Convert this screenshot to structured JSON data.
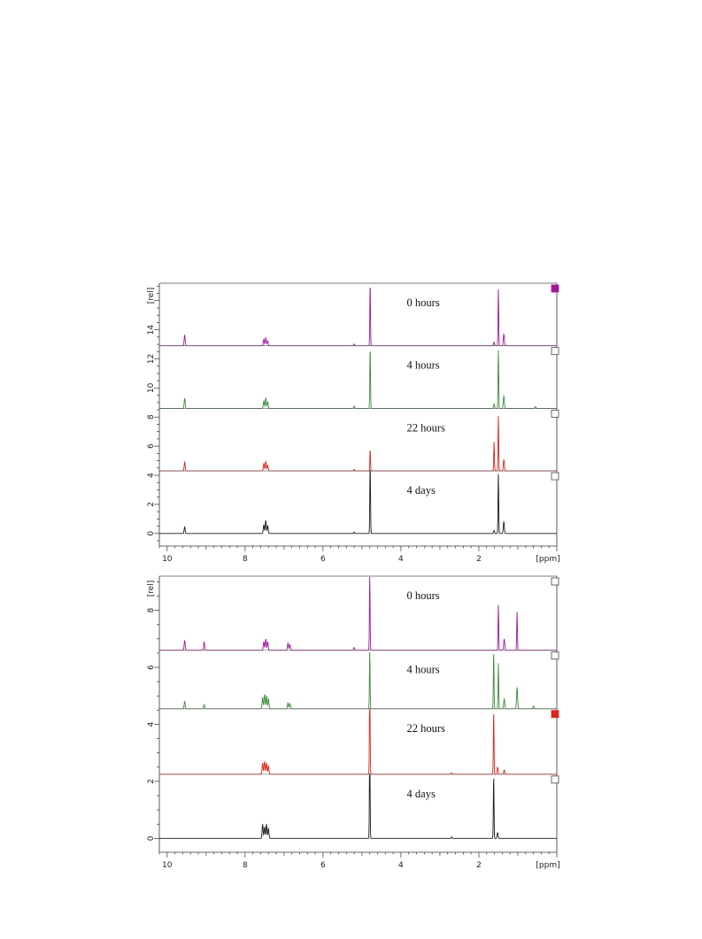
{
  "chart_data": [
    {
      "type": "line",
      "title": "",
      "xlabel": "[ppm]",
      "ylabel": "[rel]",
      "x_reversed": true,
      "xlim": [
        10.2,
        0
      ],
      "ylim": [
        -0.5,
        17.2
      ],
      "x_ticks": [
        10,
        8,
        6,
        4,
        2
      ],
      "x_tick_labels": [
        "10",
        "8",
        "6",
        "4",
        "2"
      ],
      "y_ticks": [
        0,
        2,
        4,
        6,
        8,
        10,
        12,
        14
      ],
      "y_tick_labels": [
        "0",
        "2",
        "4",
        "6",
        "8",
        "10",
        "12",
        "14"
      ],
      "grid": false,
      "series": [
        {
          "label": "0 hours",
          "color": "#a0189a",
          "marker_filled": true,
          "baseline": 12.9,
          "peaks": [
            {
              "x": 9.55,
              "h": 0.75
            },
            {
              "x": 7.52,
              "h": 0.45
            },
            {
              "x": 7.47,
              "h": 0.55
            },
            {
              "x": 7.42,
              "h": 0.35
            },
            {
              "x": 5.2,
              "h": 0.12
            },
            {
              "x": 4.79,
              "h": 4.3
            },
            {
              "x": 1.61,
              "h": 0.25
            },
            {
              "x": 1.5,
              "h": 3.9
            },
            {
              "x": 1.36,
              "h": 0.8
            }
          ]
        },
        {
          "label": "4 hours",
          "color": "#3f8a3c",
          "marker_filled": false,
          "baseline": 8.6,
          "peaks": [
            {
              "x": 9.55,
              "h": 0.7
            },
            {
              "x": 7.52,
              "h": 0.5
            },
            {
              "x": 7.47,
              "h": 0.7
            },
            {
              "x": 7.42,
              "h": 0.45
            },
            {
              "x": 5.2,
              "h": 0.15
            },
            {
              "x": 4.79,
              "h": 4.2
            },
            {
              "x": 1.61,
              "h": 0.3
            },
            {
              "x": 1.5,
              "h": 4.0
            },
            {
              "x": 1.36,
              "h": 0.85
            },
            {
              "x": 0.55,
              "h": 0.12
            }
          ]
        },
        {
          "label": "22 hours",
          "color": "#d8261c",
          "marker_filled": false,
          "baseline": 4.3,
          "peaks": [
            {
              "x": 9.55,
              "h": 0.6
            },
            {
              "x": 7.52,
              "h": 0.5
            },
            {
              "x": 7.47,
              "h": 0.65
            },
            {
              "x": 7.42,
              "h": 0.4
            },
            {
              "x": 5.2,
              "h": 0.1
            },
            {
              "x": 4.79,
              "h": 1.5
            },
            {
              "x": 1.61,
              "h": 2.0
            },
            {
              "x": 1.5,
              "h": 3.8
            },
            {
              "x": 1.36,
              "h": 0.75
            }
          ]
        },
        {
          "label": "4 days",
          "color": "#1a1a1a",
          "marker_filled": false,
          "baseline": 0.0,
          "peaks": [
            {
              "x": 9.55,
              "h": 0.45
            },
            {
              "x": 7.52,
              "h": 0.6
            },
            {
              "x": 7.47,
              "h": 0.9
            },
            {
              "x": 7.42,
              "h": 0.55
            },
            {
              "x": 5.2,
              "h": 0.1
            },
            {
              "x": 4.79,
              "h": 5.6
            },
            {
              "x": 1.61,
              "h": 0.2
            },
            {
              "x": 1.5,
              "h": 4.1
            },
            {
              "x": 1.36,
              "h": 0.8
            }
          ]
        }
      ]
    },
    {
      "type": "line",
      "title": "",
      "xlabel": "[ppm]",
      "ylabel": "[rel]",
      "x_reversed": true,
      "xlim": [
        10.2,
        0
      ],
      "ylim": [
        -0.3,
        9.2
      ],
      "x_ticks": [
        10,
        8,
        6,
        4,
        2
      ],
      "x_tick_labels": [
        "10",
        "8",
        "6",
        "4",
        "2"
      ],
      "y_ticks": [
        0,
        2,
        4,
        6,
        8
      ],
      "y_tick_labels": [
        "0",
        "2",
        "4",
        "6",
        "8"
      ],
      "grid": false,
      "series": [
        {
          "label": "0 hours",
          "color": "#a0189a",
          "marker_filled": false,
          "baseline": 6.6,
          "peaks": [
            {
              "x": 9.55,
              "h": 0.35
            },
            {
              "x": 9.05,
              "h": 0.3
            },
            {
              "x": 7.52,
              "h": 0.3
            },
            {
              "x": 7.47,
              "h": 0.4
            },
            {
              "x": 7.42,
              "h": 0.3
            },
            {
              "x": 6.9,
              "h": 0.25
            },
            {
              "x": 6.85,
              "h": 0.2
            },
            {
              "x": 5.2,
              "h": 0.1
            },
            {
              "x": 4.8,
              "h": 2.6
            },
            {
              "x": 1.5,
              "h": 1.6
            },
            {
              "x": 1.35,
              "h": 0.4
            },
            {
              "x": 1.02,
              "h": 1.35
            }
          ]
        },
        {
          "label": "4 hours",
          "color": "#3f8a3c",
          "marker_filled": false,
          "baseline": 4.55,
          "peaks": [
            {
              "x": 9.55,
              "h": 0.25
            },
            {
              "x": 9.05,
              "h": 0.15
            },
            {
              "x": 7.55,
              "h": 0.4
            },
            {
              "x": 7.5,
              "h": 0.5
            },
            {
              "x": 7.45,
              "h": 0.45
            },
            {
              "x": 7.4,
              "h": 0.35
            },
            {
              "x": 6.9,
              "h": 0.2
            },
            {
              "x": 6.85,
              "h": 0.18
            },
            {
              "x": 4.8,
              "h": 2.0
            },
            {
              "x": 1.62,
              "h": 2.0
            },
            {
              "x": 1.5,
              "h": 1.6
            },
            {
              "x": 1.35,
              "h": 0.35
            },
            {
              "x": 1.02,
              "h": 0.75
            },
            {
              "x": 0.6,
              "h": 0.1
            }
          ]
        },
        {
          "label": "22 hours",
          "color": "#d8261c",
          "marker_filled": true,
          "baseline": 2.25,
          "peaks": [
            {
              "x": 7.55,
              "h": 0.4
            },
            {
              "x": 7.5,
              "h": 0.45
            },
            {
              "x": 7.45,
              "h": 0.4
            },
            {
              "x": 7.4,
              "h": 0.3
            },
            {
              "x": 4.8,
              "h": 3.5
            },
            {
              "x": 2.7,
              "h": 0.05
            },
            {
              "x": 1.62,
              "h": 2.2
            },
            {
              "x": 1.52,
              "h": 0.25
            },
            {
              "x": 1.35,
              "h": 0.15
            }
          ]
        },
        {
          "label": "4 days",
          "color": "#1a1a1a",
          "marker_filled": false,
          "baseline": 0.0,
          "peaks": [
            {
              "x": 7.55,
              "h": 0.5
            },
            {
              "x": 7.5,
              "h": 0.4
            },
            {
              "x": 7.45,
              "h": 0.5
            },
            {
              "x": 7.4,
              "h": 0.35
            },
            {
              "x": 4.8,
              "h": 3.6
            },
            {
              "x": 2.7,
              "h": 0.05
            },
            {
              "x": 1.62,
              "h": 2.2
            },
            {
              "x": 1.52,
              "h": 0.2
            }
          ]
        }
      ]
    }
  ]
}
